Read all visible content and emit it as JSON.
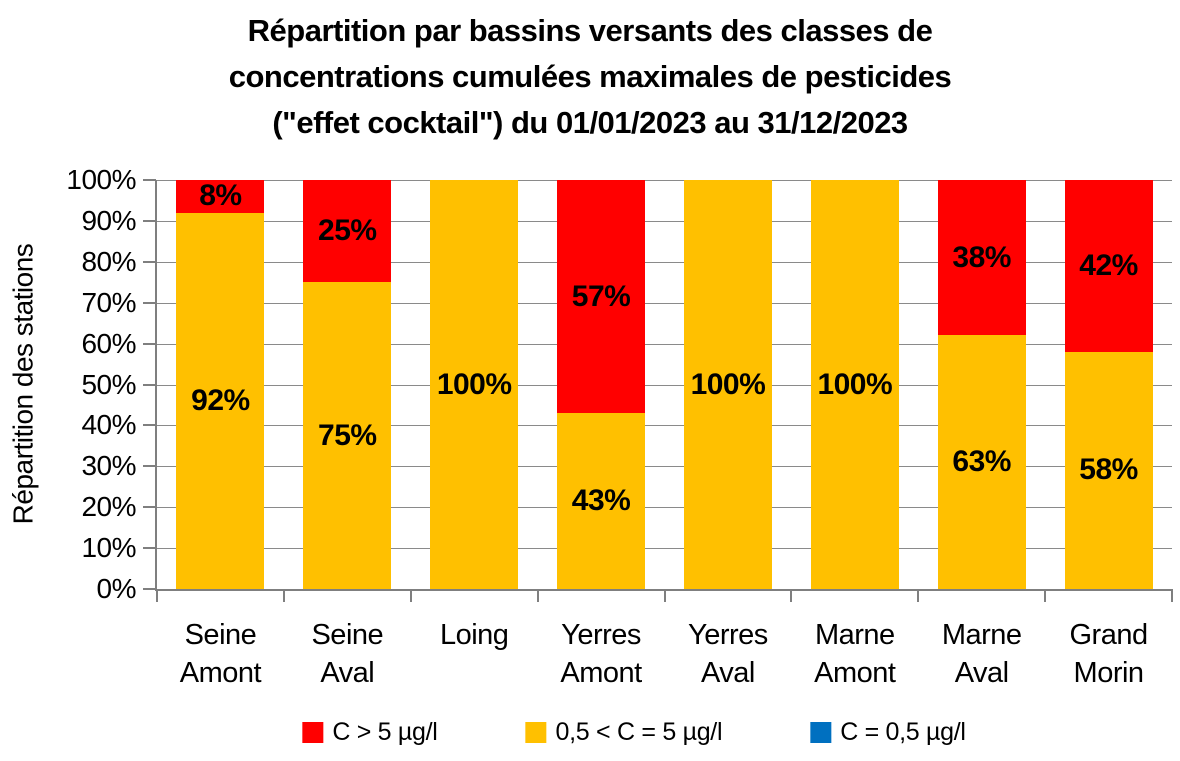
{
  "title": {
    "line1": "Répartition par bassins versants des classes de",
    "line2": "concentrations cumulées maximales de pesticides",
    "line3": "(\"effet cocktail\") du 01/01/2023 au 31/12/2023"
  },
  "chart_data": {
    "type": "bar",
    "stacked": true,
    "title": "Répartition par bassins versants des classes de concentrations cumulées maximales de pesticides (\"effet cocktail\") du 01/01/2023 au 31/12/2023",
    "xlabel": "",
    "ylabel": "Répartition des stations",
    "ylim": [
      0,
      100
    ],
    "grid": true,
    "legend_position": "bottom",
    "y_ticks_top_to_bottom": [
      "100%",
      "90%",
      "80%",
      "70%",
      "60%",
      "50%",
      "40%",
      "30%",
      "20%",
      "10%",
      "0%"
    ],
    "categories": [
      "Seine Amont",
      "Seine Aval",
      "Loing",
      "Yerres Amont",
      "Yerres Aval",
      "Marne Amont",
      "Marne Aval",
      "Grand Morin"
    ],
    "category_lines": [
      [
        "Seine",
        "Amont"
      ],
      [
        "Seine",
        "Aval"
      ],
      [
        "Loing",
        ""
      ],
      [
        "Yerres",
        "Amont"
      ],
      [
        "Yerres",
        "Aval"
      ],
      [
        "Marne",
        "Amont"
      ],
      [
        "Marne",
        "Aval"
      ],
      [
        "Grand",
        "Morin"
      ]
    ],
    "series": [
      {
        "name": "C > 5 µg/l",
        "color": "#FF0000",
        "values": [
          8,
          25,
          0,
          57,
          0,
          0,
          38,
          42
        ],
        "data_labels": [
          "8%",
          "25%",
          "",
          "57%",
          "",
          "",
          "38%",
          "42%"
        ],
        "draw_heights_pct": [
          8,
          25,
          0,
          57,
          0,
          0,
          38,
          42
        ]
      },
      {
        "name": "0,5 < C = 5 µg/l",
        "color": "#FFC000",
        "values": [
          92,
          75,
          100,
          43,
          100,
          100,
          63,
          58
        ],
        "data_labels": [
          "92%",
          "75%",
          "100%",
          "43%",
          "100%",
          "100%",
          "63%",
          "58%"
        ],
        "draw_heights_pct": [
          92,
          75,
          100,
          43,
          100,
          100,
          62,
          58
        ]
      },
      {
        "name": "C = 0,5 µg/l",
        "color": "#0070C0",
        "values": [
          0,
          0,
          0,
          0,
          0,
          0,
          0,
          0
        ],
        "data_labels": [
          "",
          "",
          "",
          "",
          "",
          "",
          "",
          ""
        ],
        "draw_heights_pct": [
          0,
          0,
          0,
          0,
          0,
          0,
          0,
          0
        ]
      }
    ],
    "colors": {
      "grid": "#8a8a8a",
      "axis": "#7f7f7f",
      "text": "#000000",
      "background": "#FFFFFF"
    }
  }
}
